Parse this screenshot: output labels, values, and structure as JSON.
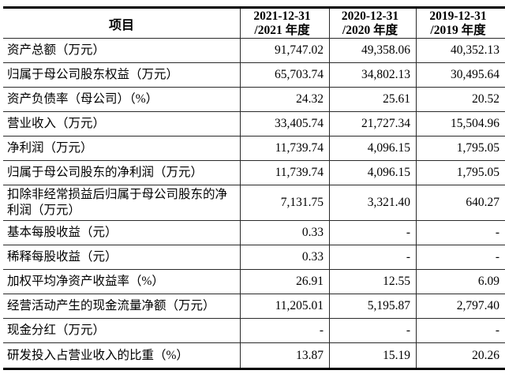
{
  "colors": {
    "background": "#ffffff",
    "text": "#000000",
    "grid_line": "#2a2a2a",
    "outer_rule": "#000000"
  },
  "table": {
    "header": {
      "item": "项目",
      "periods": [
        {
          "line1": "2021-12-31",
          "line2": "/2021 年度"
        },
        {
          "line1": "2020-12-31",
          "line2": "/2020 年度"
        },
        {
          "line1": "2019-12-31",
          "line2": "/2019 年度"
        }
      ]
    },
    "rows": [
      {
        "label": "资产总额（万元）",
        "values": [
          "91,747.02",
          "49,358.06",
          "40,352.13"
        ]
      },
      {
        "label": "归属于母公司股东权益（万元）",
        "values": [
          "65,703.74",
          "34,802.13",
          "30,495.64"
        ]
      },
      {
        "label": "资产负债率（母公司）（%）",
        "values": [
          "24.32",
          "25.61",
          "20.52"
        ]
      },
      {
        "label": "营业收入（万元）",
        "values": [
          "33,405.74",
          "21,727.34",
          "15,504.96"
        ]
      },
      {
        "label": "净利润（万元）",
        "values": [
          "11,739.74",
          "4,096.15",
          "1,795.05"
        ]
      },
      {
        "label": "归属于母公司股东的净利润（万元）",
        "values": [
          "11,739.74",
          "4,096.15",
          "1,795.05"
        ]
      },
      {
        "label": "扣除非经常损益后归属于母公司股东的净利润（万元）",
        "values": [
          "7,131.75",
          "3,321.40",
          "640.27"
        ]
      },
      {
        "label": "基本每股收益（元）",
        "values": [
          "0.33",
          "-",
          "-"
        ]
      },
      {
        "label": "稀释每股收益（元）",
        "values": [
          "0.33",
          "-",
          "-"
        ]
      },
      {
        "label": "加权平均净资产收益率（%）",
        "values": [
          "26.91",
          "12.55",
          "6.09"
        ]
      },
      {
        "label": "经营活动产生的现金流量净额（万元）",
        "values": [
          "11,205.01",
          "5,195.87",
          "2,797.40"
        ]
      },
      {
        "label": "现金分红（万元）",
        "values": [
          "-",
          "-",
          "-"
        ]
      },
      {
        "label": "研发投入占营业收入的比重（%）",
        "values": [
          "13.87",
          "15.19",
          "20.26"
        ]
      }
    ]
  }
}
